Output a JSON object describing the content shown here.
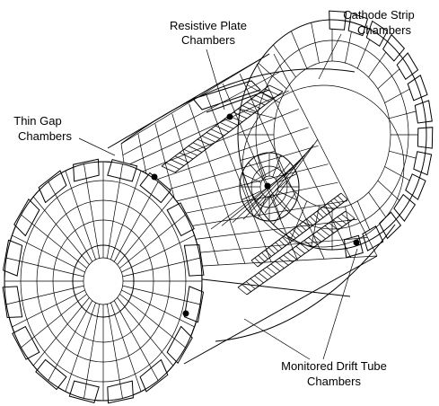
{
  "labels": {
    "rpc_line1": "Resistive Plate",
    "rpc_line2": "Chambers",
    "csc_line1": "Cathode Strip",
    "csc_line2": "Chambers",
    "tgc_line1": "Thin Gap",
    "tgc_line2": "Chambers",
    "mdt_line1": "Monitored Drift Tube",
    "mdt_line2": "Chambers"
  }
}
